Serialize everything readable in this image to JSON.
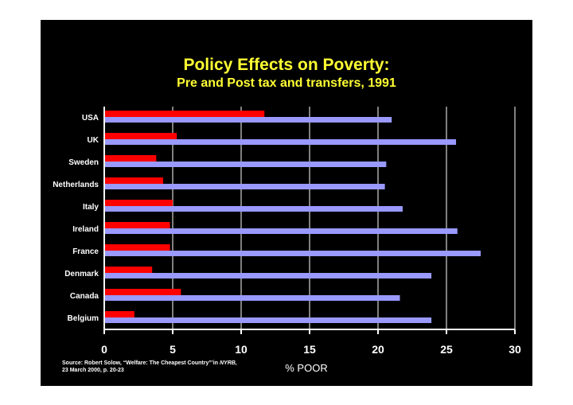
{
  "title": "Policy Effects on Poverty:",
  "subtitle": "Pre and Post tax and transfers, 1991",
  "source": {
    "line1_prefix": "Source: Robert Solow, “Welfare: The Cheapest Country”’in ",
    "line1_journal": "NYRB,",
    "line2": "23 March 2000, p. 20-23"
  },
  "colors": {
    "background": "#000000",
    "title": "#ffff33",
    "post_bar": "#ff0000",
    "pre_bar": "#9999ff",
    "axis": "#ffffff",
    "grid": "#ffffff"
  },
  "chart_data": {
    "type": "bar",
    "orientation": "horizontal",
    "title": "Policy Effects on Poverty: Pre and Post tax and transfers, 1991",
    "xlabel": "% POOR",
    "ylabel": "",
    "xlim": [
      0,
      30
    ],
    "xticks": [
      0,
      5,
      10,
      15,
      20,
      25,
      30
    ],
    "grid": true,
    "categories": [
      "USA",
      "UK",
      "Sweden",
      "Netherlands",
      "Italy",
      "Ireland",
      "France",
      "Denmark",
      "Canada",
      "Belgium"
    ],
    "series": [
      {
        "name": "Post tax and transfers",
        "values": [
          11.7,
          5.3,
          3.8,
          4.3,
          5.0,
          4.8,
          4.8,
          3.5,
          5.6,
          2.2
        ]
      },
      {
        "name": "Pre tax and transfers",
        "values": [
          21.0,
          25.7,
          20.6,
          20.5,
          21.8,
          25.8,
          27.5,
          23.9,
          21.6,
          23.9
        ]
      }
    ]
  }
}
